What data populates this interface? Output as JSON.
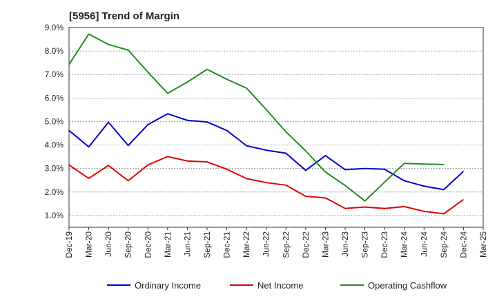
{
  "chart_data": {
    "type": "line",
    "title": "[5956]  Trend of Margin",
    "xlabel": "",
    "ylabel": "",
    "x_ticks": [
      "Dec-19",
      "Mar-20",
      "Jun-20",
      "Sep-20",
      "Dec-20",
      "Mar-21",
      "Jun-21",
      "Sep-21",
      "Dec-21",
      "Mar-22",
      "Jun-22",
      "Sep-22",
      "Dec-22",
      "Mar-23",
      "Jun-23",
      "Sep-23",
      "Dec-23",
      "Mar-24",
      "Jun-24",
      "Sep-24",
      "Dec-24",
      "Mar-25"
    ],
    "y_ticks": [
      "1.0%",
      "2.0%",
      "3.0%",
      "4.0%",
      "5.0%",
      "6.0%",
      "7.0%",
      "8.0%",
      "9.0%"
    ],
    "ylim": [
      0.5,
      9.0
    ],
    "grid": true,
    "legend_position": "bottom",
    "series": [
      {
        "name": "Ordinary Income",
        "color": "#0000cc",
        "values": [
          4.62,
          3.92,
          4.97,
          3.98,
          4.87,
          5.33,
          5.05,
          4.98,
          4.62,
          3.97,
          3.78,
          3.65,
          2.92,
          3.55,
          2.95,
          3.0,
          2.97,
          2.48,
          2.25,
          2.1,
          2.88,
          null
        ]
      },
      {
        "name": "Net Income",
        "color": "#e00000",
        "values": [
          3.15,
          2.58,
          3.13,
          2.48,
          3.15,
          3.51,
          3.32,
          3.28,
          2.97,
          2.57,
          2.4,
          2.29,
          1.82,
          1.75,
          1.3,
          1.36,
          1.3,
          1.38,
          1.18,
          1.07,
          1.68,
          null
        ]
      },
      {
        "name": "Operating Cashflow",
        "color": "#228b22",
        "values": [
          7.43,
          8.72,
          8.28,
          8.04,
          7.1,
          6.2,
          6.68,
          7.22,
          6.8,
          6.42,
          5.51,
          4.56,
          3.75,
          2.85,
          2.28,
          1.62,
          2.42,
          3.22,
          3.19,
          3.17,
          null,
          null
        ]
      }
    ]
  }
}
